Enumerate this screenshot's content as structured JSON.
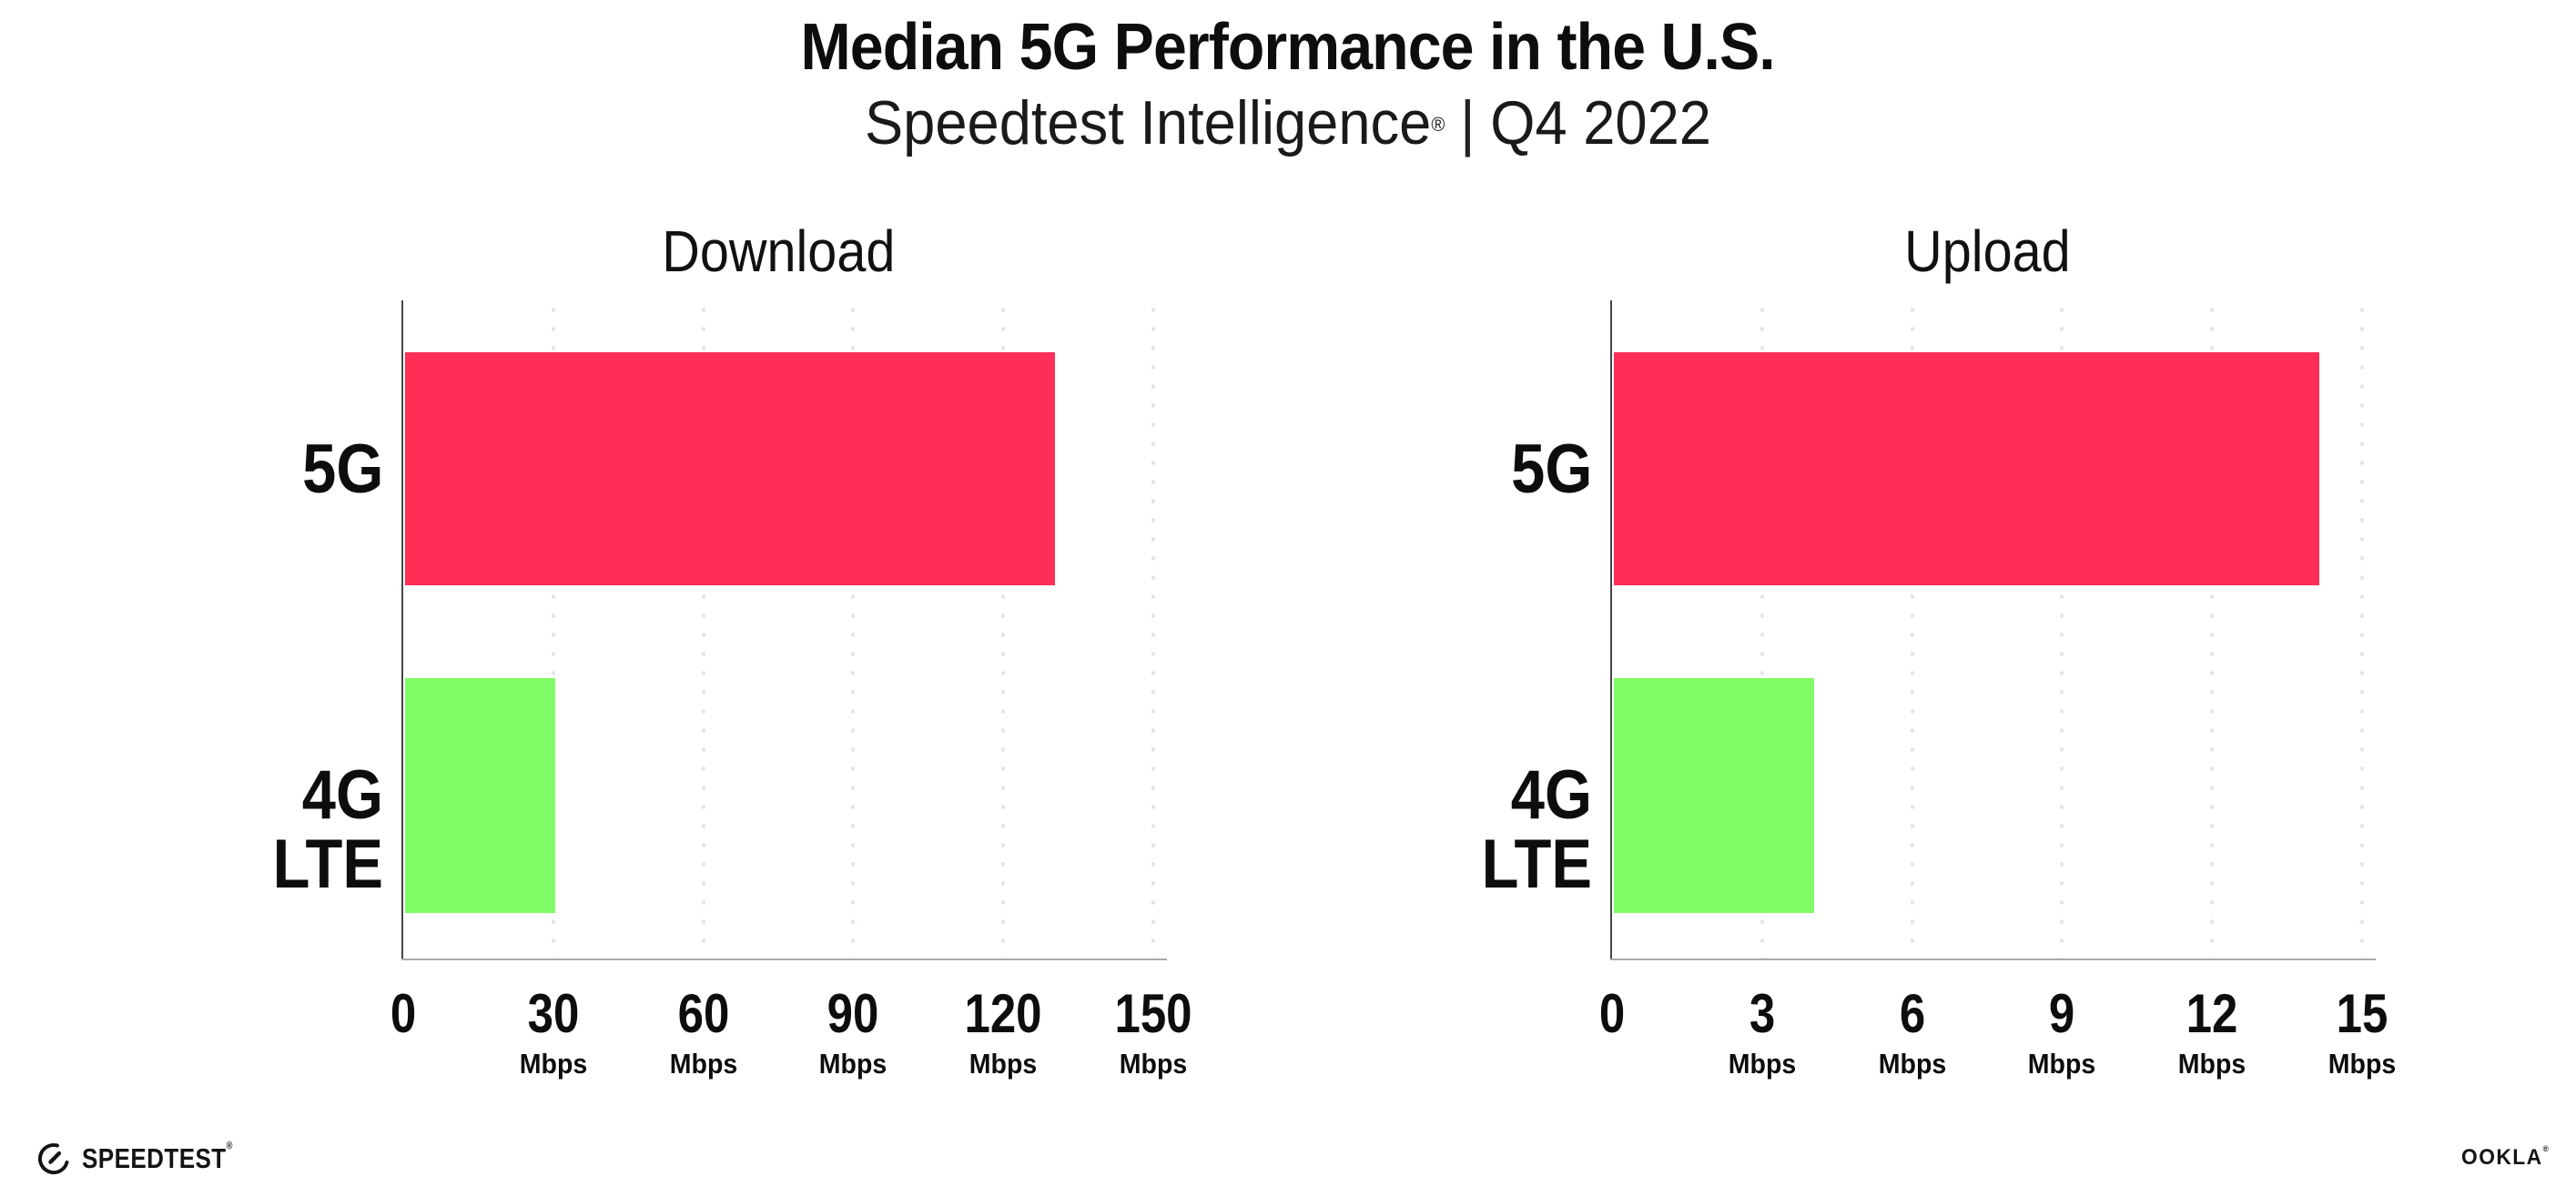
{
  "header": {
    "title": "Median 5G Performance in the U.S.",
    "subtitle_brand": "Speedtest Intelligence",
    "subtitle_reg": "®",
    "subtitle_sep": "|",
    "subtitle_period": "Q4 2022"
  },
  "chart_data": [
    {
      "type": "bar",
      "orientation": "horizontal",
      "title": "Download",
      "categories": [
        "5G",
        "4G LTE"
      ],
      "values": [
        130,
        30
      ],
      "unit": "Mbps",
      "xlim": [
        0,
        150
      ],
      "grid": "vertical-dotted",
      "bar_colors": [
        "#ff2e56",
        "#80fc66"
      ],
      "xticks": [
        {
          "label": "0",
          "unit": ""
        },
        {
          "label": "30",
          "unit": "Mbps"
        },
        {
          "label": "60",
          "unit": "Mbps"
        },
        {
          "label": "90",
          "unit": "Mbps"
        },
        {
          "label": "120",
          "unit": "Mbps"
        },
        {
          "label": "150",
          "unit": "Mbps"
        }
      ]
    },
    {
      "type": "bar",
      "orientation": "horizontal",
      "title": "Upload",
      "categories": [
        "5G",
        "4G LTE"
      ],
      "values": [
        14.1,
        4
      ],
      "unit": "Mbps",
      "xlim": [
        0,
        15
      ],
      "grid": "vertical-dotted",
      "bar_colors": [
        "#ff2e56",
        "#80fc66"
      ],
      "xticks": [
        {
          "label": "0",
          "unit": ""
        },
        {
          "label": "3",
          "unit": "Mbps"
        },
        {
          "label": "6",
          "unit": "Mbps"
        },
        {
          "label": "9",
          "unit": "Mbps"
        },
        {
          "label": "12",
          "unit": "Mbps"
        },
        {
          "label": "15",
          "unit": "Mbps"
        }
      ]
    }
  ],
  "footer": {
    "speedtest_label": "SPEEDTEST",
    "speedtest_mark": "®",
    "ookla_label": "OOKLA",
    "ookla_mark": "®"
  }
}
